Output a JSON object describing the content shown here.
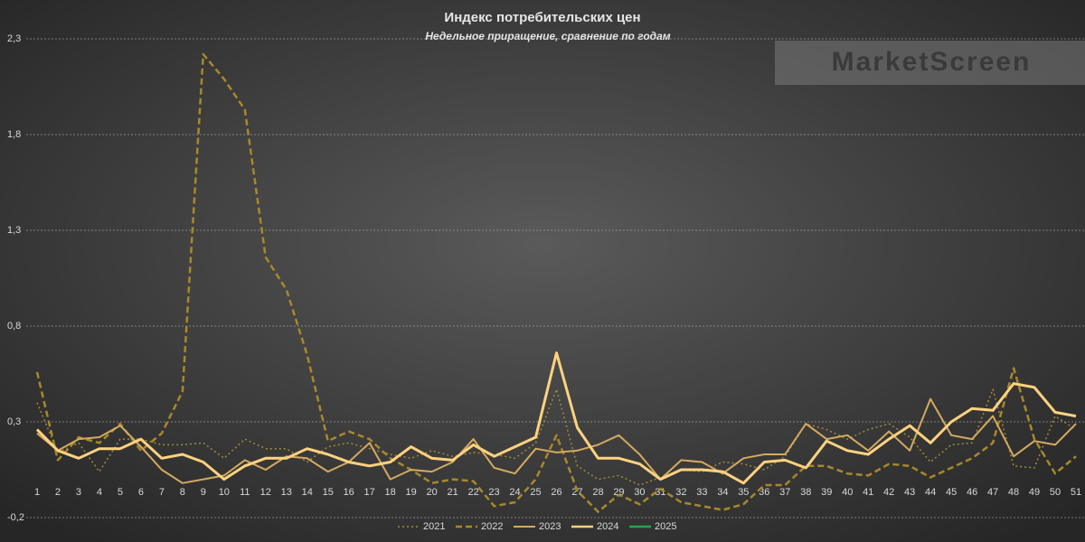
{
  "chart_data": {
    "type": "line",
    "title": "Индекс потребительских цен",
    "subtitle": "Недельное приращение, сравнение по годам",
    "watermark": "MarketScreen",
    "categories": [
      "1",
      "2",
      "3",
      "4",
      "5",
      "6",
      "7",
      "8",
      "9",
      "10",
      "11",
      "12",
      "13",
      "14",
      "15",
      "16",
      "17",
      "18",
      "19",
      "20",
      "21",
      "22",
      "23",
      "24",
      "25",
      "26",
      "27",
      "28",
      "29",
      "30",
      "31",
      "32",
      "33",
      "34",
      "35",
      "36",
      "37",
      "38",
      "39",
      "40",
      "41",
      "42",
      "43",
      "44",
      "45",
      "46",
      "47",
      "48",
      "49",
      "50",
      "51"
    ],
    "ylim": [
      -0.2,
      2.3
    ],
    "yticks": [
      {
        "value": -0.2,
        "label": "-0,2"
      },
      {
        "value": 0.3,
        "label": "0,3"
      },
      {
        "value": 0.8,
        "label": "0,8"
      },
      {
        "value": 1.3,
        "label": "1,3"
      },
      {
        "value": 1.8,
        "label": "1,8"
      },
      {
        "value": 2.3,
        "label": "2,3"
      }
    ],
    "grid": true,
    "legend": "bottom",
    "series": [
      {
        "name": "2021",
        "color": "#a08a3a",
        "dash": "dotted",
        "width": 1.5,
        "values": [
          0.4,
          0.14,
          0.19,
          0.04,
          0.21,
          0.21,
          0.18,
          0.18,
          0.19,
          0.11,
          0.21,
          0.16,
          0.16,
          0.09,
          0.17,
          0.19,
          0.16,
          0.13,
          0.11,
          0.15,
          0.12,
          0.14,
          0.13,
          0.11,
          0.19,
          0.47,
          0.07,
          0.0,
          0.02,
          -0.03,
          0.01,
          0.05,
          0.04,
          0.09,
          0.08,
          0.05,
          0.12,
          0.29,
          0.26,
          0.21,
          0.26,
          0.29,
          0.22,
          0.09,
          0.18,
          0.19,
          0.47,
          0.07,
          0.06,
          0.33,
          0.26
        ]
      },
      {
        "name": "2022",
        "color": "#a8882a",
        "dash": "dashed",
        "width": 2.5,
        "values": [
          0.56,
          0.1,
          0.22,
          0.19,
          0.29,
          0.15,
          0.24,
          0.46,
          2.22,
          2.09,
          1.93,
          1.16,
          0.99,
          0.65,
          0.2,
          0.25,
          0.21,
          0.11,
          0.05,
          -0.02,
          0.0,
          -0.01,
          -0.14,
          -0.12,
          0.0,
          0.23,
          -0.06,
          -0.17,
          -0.08,
          -0.13,
          -0.05,
          -0.12,
          -0.14,
          -0.16,
          -0.13,
          -0.03,
          -0.03,
          0.07,
          0.07,
          0.03,
          0.02,
          0.08,
          0.07,
          0.01,
          0.06,
          0.11,
          0.19,
          0.58,
          0.21,
          0.03,
          0.12
        ]
      },
      {
        "name": "2023",
        "color": "#d4aa60",
        "dash": "solid",
        "width": 2,
        "values": [
          0.24,
          0.15,
          0.21,
          0.22,
          0.28,
          0.17,
          0.05,
          -0.02,
          0.0,
          0.02,
          0.1,
          0.05,
          0.12,
          0.11,
          0.04,
          0.09,
          0.19,
          0.0,
          0.05,
          0.04,
          0.09,
          0.21,
          0.06,
          0.03,
          0.16,
          0.14,
          0.15,
          0.18,
          0.23,
          0.13,
          0.0,
          0.1,
          0.09,
          0.03,
          0.11,
          0.13,
          0.13,
          0.29,
          0.21,
          0.23,
          0.15,
          0.25,
          0.15,
          0.42,
          0.23,
          0.21,
          0.33,
          0.12,
          0.2,
          0.18,
          0.29
        ]
      },
      {
        "name": "2024",
        "color": "#ffd27f",
        "dash": "solid",
        "width": 3,
        "values": [
          0.26,
          0.15,
          0.11,
          0.16,
          0.16,
          0.21,
          0.11,
          0.13,
          0.09,
          0.0,
          0.07,
          0.11,
          0.11,
          0.16,
          0.13,
          0.09,
          0.07,
          0.09,
          0.17,
          0.11,
          0.1,
          0.18,
          0.12,
          0.17,
          0.22,
          0.66,
          0.27,
          0.11,
          0.11,
          0.08,
          0.0,
          0.05,
          0.05,
          0.04,
          -0.02,
          0.09,
          0.1,
          0.06,
          0.2,
          0.15,
          0.13,
          0.21,
          0.28,
          0.19,
          0.3,
          0.37,
          0.36,
          0.5,
          0.48,
          0.35,
          0.33
        ]
      },
      {
        "name": "2025",
        "color": "#1fa84a",
        "dash": "solid",
        "width": 3,
        "values": [
          null,
          null,
          null,
          null,
          null,
          null,
          null,
          null,
          null,
          null,
          null,
          null,
          null,
          null,
          null,
          null,
          null,
          null,
          null,
          null,
          null,
          null,
          null,
          null,
          null,
          null,
          null,
          null,
          null,
          null,
          null,
          null,
          null,
          null,
          null,
          null,
          null,
          null,
          null,
          null,
          null,
          null,
          null,
          null,
          null,
          null,
          null,
          null,
          null,
          null,
          null
        ]
      }
    ]
  }
}
